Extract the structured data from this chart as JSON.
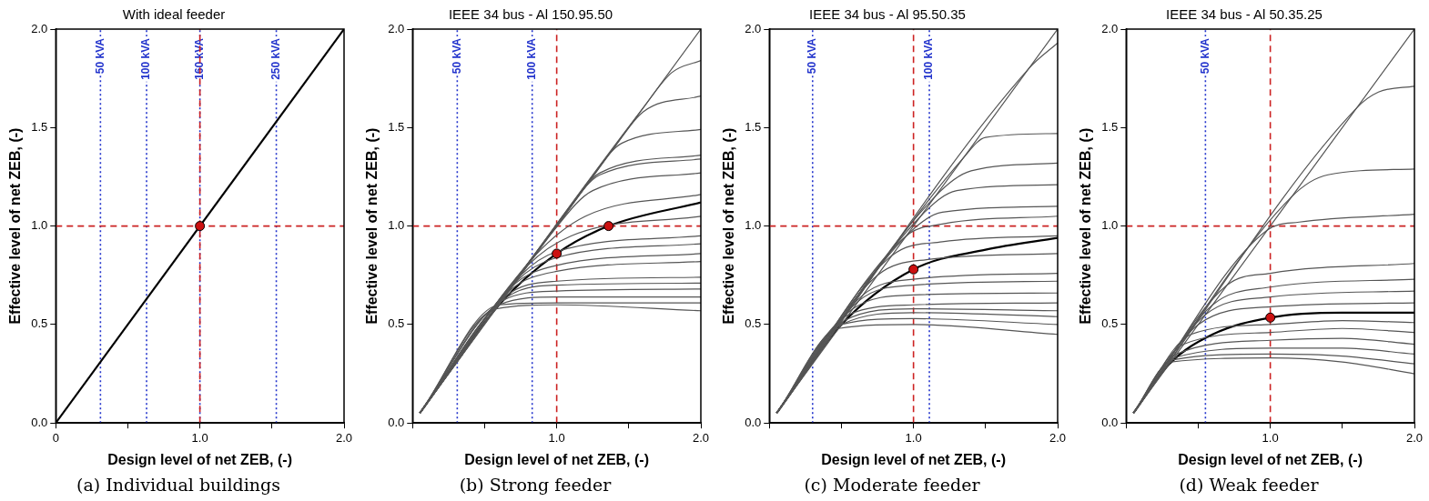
{
  "chart_data": [
    {
      "type": "line",
      "title": "With ideal feeder",
      "xlabel": "Design level of net ZEB, (-)",
      "ylabel": "Effective level of net ZEB, (-)",
      "annotations": [
        "(a) Individual buildings"
      ],
      "xlim": [
        0,
        2
      ],
      "ylim": [
        0,
        2
      ],
      "xticks": [
        {
          "value": 0,
          "label": "0"
        },
        {
          "value": 0.5,
          "label": null
        },
        {
          "value": 1,
          "label": "1.0"
        },
        {
          "value": 1.5,
          "label": null
        },
        {
          "value": 2,
          "label": "2.0"
        }
      ],
      "yticks": [
        {
          "value": 0,
          "label": "0.0"
        },
        {
          "value": 0.5,
          "label": "0.5"
        },
        {
          "value": 1,
          "label": "1.0"
        },
        {
          "value": 1.5,
          "label": "1.5"
        },
        {
          "value": 2,
          "label": "2.0"
        }
      ],
      "grid": false,
      "legend": false,
      "ref_lines": [
        {
          "axis": "x",
          "value": 0.31,
          "label": "50 kVA",
          "color": "#2233cc",
          "line_style": "dotted"
        },
        {
          "axis": "x",
          "value": 0.63,
          "label": "100 kVA",
          "color": "#2233cc",
          "line_style": "dotted"
        },
        {
          "axis": "x",
          "value": 1.0,
          "label": "160 kVA",
          "color": "#2233cc",
          "line_style": "dotted"
        },
        {
          "axis": "x",
          "value": 1.53,
          "label": "250 kVA",
          "color": "#2233cc",
          "line_style": "dotted"
        },
        {
          "axis": "x",
          "value": 1.0,
          "color": "#cc2222",
          "line_style": "dashed"
        },
        {
          "axis": "y",
          "value": 1.0,
          "color": "#cc2222",
          "line_style": "dashed"
        }
      ],
      "series": [
        {
          "type": "line",
          "color": "#000000",
          "x": [
            0,
            2
          ],
          "values": [
            0,
            2
          ]
        },
        {
          "type": "scatter",
          "marker": "circle",
          "color": "#cc1111",
          "x": [
            1.0
          ],
          "values": [
            1.0
          ]
        }
      ]
    },
    {
      "type": "line",
      "title": "IEEE 34 bus - Al 150.95.50",
      "xlabel": "Design level of net ZEB, (-)",
      "ylabel": "Effective level of net ZEB, (-)",
      "annotations": [
        "(b) Strong feeder"
      ],
      "xlim": [
        0,
        2
      ],
      "ylim": [
        0,
        2
      ],
      "xticks": [
        {
          "value": 0,
          "label": null
        },
        {
          "value": 0.5,
          "label": null
        },
        {
          "value": 1,
          "label": "1.0"
        },
        {
          "value": 1.5,
          "label": null
        },
        {
          "value": 2,
          "label": "2.0"
        }
      ],
      "yticks": [
        {
          "value": 0,
          "label": "0.0"
        },
        {
          "value": 0.5,
          "label": "0.5"
        },
        {
          "value": 1,
          "label": "1.0"
        },
        {
          "value": 1.5,
          "label": "1.5"
        },
        {
          "value": 2,
          "label": "2.0"
        }
      ],
      "grid": false,
      "legend": false,
      "ref_lines": [
        {
          "axis": "x",
          "value": 0.31,
          "label": "50 kVA",
          "color": "#2233cc",
          "line_style": "dotted"
        },
        {
          "axis": "x",
          "value": 0.83,
          "label": "100 kVA",
          "color": "#2233cc",
          "line_style": "dotted"
        },
        {
          "axis": "x",
          "value": 1.0,
          "color": "#cc2222",
          "line_style": "dashed"
        },
        {
          "axis": "y",
          "value": 1.0,
          "color": "#cc2222",
          "line_style": "dashed"
        }
      ],
      "series": [
        {
          "type": "line",
          "color": "#555555",
          "x": [
            0.05,
            2
          ],
          "values": [
            0.05,
            2
          ]
        },
        {
          "type": "line",
          "color": "#555555",
          "x": [
            0.05,
            1.6,
            1.8,
            2
          ],
          "values": [
            0.05,
            1.6,
            1.78,
            1.84
          ]
        },
        {
          "type": "line",
          "color": "#555555",
          "x": [
            0.05,
            1.4,
            1.6,
            2
          ],
          "values": [
            0.05,
            1.4,
            1.58,
            1.66
          ]
        },
        {
          "type": "line",
          "color": "#555555",
          "x": [
            0.05,
            1.2,
            1.45,
            2
          ],
          "values": [
            0.05,
            1.2,
            1.42,
            1.49
          ]
        },
        {
          "type": "line",
          "color": "#555555",
          "x": [
            0.05,
            1.05,
            1.3,
            2
          ],
          "values": [
            0.05,
            1.05,
            1.27,
            1.36
          ]
        },
        {
          "type": "line",
          "color": "#555555",
          "x": [
            0.05,
            1.0,
            1.3,
            2
          ],
          "values": [
            0.05,
            1.0,
            1.26,
            1.34
          ]
        },
        {
          "type": "line",
          "color": "#555555",
          "x": [
            0.05,
            0.95,
            1.25,
            2
          ],
          "values": [
            0.05,
            0.95,
            1.18,
            1.27
          ]
        },
        {
          "type": "line",
          "color": "#555555",
          "x": [
            0.05,
            0.85,
            1.2,
            2
          ],
          "values": [
            0.05,
            0.85,
            1.05,
            1.16
          ]
        },
        {
          "type": "line",
          "color": "#555555",
          "x": [
            0.05,
            0.8,
            1.1,
            2
          ],
          "values": [
            0.05,
            0.8,
            0.95,
            1.05
          ]
        },
        {
          "type": "line",
          "color": "#555555",
          "x": [
            0.05,
            0.75,
            1.0,
            2
          ],
          "values": [
            0.05,
            0.75,
            0.87,
            0.95
          ]
        },
        {
          "type": "line",
          "color": "#555555",
          "x": [
            0.05,
            0.72,
            1.0,
            2
          ],
          "values": [
            0.05,
            0.72,
            0.84,
            0.91
          ]
        },
        {
          "type": "line",
          "color": "#555555",
          "x": [
            0.05,
            0.7,
            1.0,
            2
          ],
          "values": [
            0.05,
            0.7,
            0.8,
            0.86
          ]
        },
        {
          "type": "line",
          "color": "#555555",
          "x": [
            0.05,
            0.67,
            1.0,
            2
          ],
          "values": [
            0.05,
            0.67,
            0.77,
            0.82
          ]
        },
        {
          "type": "line",
          "color": "#555555",
          "x": [
            0.05,
            0.64,
            1.0,
            2
          ],
          "values": [
            0.05,
            0.64,
            0.72,
            0.74
          ]
        },
        {
          "type": "line",
          "color": "#555555",
          "x": [
            0.05,
            0.62,
            1.0,
            2
          ],
          "values": [
            0.05,
            0.62,
            0.7,
            0.71
          ]
        },
        {
          "type": "line",
          "color": "#555555",
          "x": [
            0.05,
            0.62,
            1.0,
            2
          ],
          "values": [
            0.05,
            0.62,
            0.67,
            0.68
          ]
        },
        {
          "type": "line",
          "color": "#555555",
          "x": [
            0.05,
            0.6,
            1.0,
            2
          ],
          "values": [
            0.05,
            0.6,
            0.64,
            0.64
          ]
        },
        {
          "type": "line",
          "color": "#555555",
          "x": [
            0.05,
            0.6,
            1.0,
            2
          ],
          "values": [
            0.05,
            0.6,
            0.61,
            0.61
          ]
        },
        {
          "type": "line",
          "color": "#555555",
          "x": [
            0.05,
            0.58,
            1.0,
            2
          ],
          "values": [
            0.05,
            0.58,
            0.6,
            0.57
          ]
        },
        {
          "type": "line",
          "color": "#000000",
          "x": [
            0.05,
            0.6,
            1.0,
            1.36,
            2
          ],
          "values": [
            0.05,
            0.6,
            0.86,
            1.0,
            1.12
          ]
        },
        {
          "type": "scatter",
          "marker": "circle",
          "color": "#cc1111",
          "x": [
            1.0,
            1.36
          ],
          "values": [
            0.86,
            1.0
          ]
        }
      ]
    },
    {
      "type": "line",
      "title": "IEEE 34 bus - Al 95.50.35",
      "xlabel": "Design level of net ZEB, (-)",
      "ylabel": "Effective level of net ZEB, (-)",
      "annotations": [
        "(c) Moderate feeder"
      ],
      "xlim": [
        0,
        2
      ],
      "ylim": [
        0,
        2
      ],
      "xticks": [
        {
          "value": 0,
          "label": null
        },
        {
          "value": 0.5,
          "label": null
        },
        {
          "value": 1,
          "label": "1.0"
        },
        {
          "value": 1.5,
          "label": null
        },
        {
          "value": 2,
          "label": "2.0"
        }
      ],
      "yticks": [
        {
          "value": 0,
          "label": "0.0"
        },
        {
          "value": 0.5,
          "label": "0.5"
        },
        {
          "value": 1,
          "label": "1.0"
        },
        {
          "value": 1.5,
          "label": "1.5"
        },
        {
          "value": 2,
          "label": "2.0"
        }
      ],
      "grid": false,
      "legend": false,
      "ref_lines": [
        {
          "axis": "x",
          "value": 0.3,
          "label": "50 kVA",
          "color": "#2233cc",
          "line_style": "dotted"
        },
        {
          "axis": "x",
          "value": 1.11,
          "label": "100 kVA",
          "color": "#2233cc",
          "line_style": "dotted"
        },
        {
          "axis": "x",
          "value": 1.0,
          "color": "#cc2222",
          "line_style": "dashed"
        },
        {
          "axis": "y",
          "value": 1.0,
          "color": "#cc2222",
          "line_style": "dashed"
        }
      ],
      "series": [
        {
          "type": "line",
          "color": "#555555",
          "x": [
            0.05,
            2
          ],
          "values": [
            0.05,
            2
          ]
        },
        {
          "type": "line",
          "color": "#555555",
          "x": [
            0.05,
            1.8,
            2
          ],
          "values": [
            0.05,
            1.8,
            1.93
          ]
        },
        {
          "type": "line",
          "color": "#555555",
          "x": [
            0.05,
            1.35,
            1.5,
            2
          ],
          "values": [
            0.05,
            1.35,
            1.45,
            1.47
          ]
        },
        {
          "type": "line",
          "color": "#555555",
          "x": [
            0.05,
            1.15,
            1.4,
            2
          ],
          "values": [
            0.05,
            1.15,
            1.28,
            1.32
          ]
        },
        {
          "type": "line",
          "color": "#555555",
          "x": [
            0.05,
            1.05,
            1.3,
            2
          ],
          "values": [
            0.05,
            1.05,
            1.18,
            1.21
          ]
        },
        {
          "type": "line",
          "color": "#555555",
          "x": [
            0.05,
            0.95,
            1.2,
            2
          ],
          "values": [
            0.05,
            0.95,
            1.07,
            1.1
          ]
        },
        {
          "type": "line",
          "color": "#555555",
          "x": [
            0.05,
            0.95,
            1.2,
            2
          ],
          "values": [
            0.05,
            0.95,
            1.01,
            1.05
          ]
        },
        {
          "type": "line",
          "color": "#555555",
          "x": [
            0.05,
            0.85,
            1.2,
            2
          ],
          "values": [
            0.05,
            0.85,
            0.92,
            0.95
          ]
        },
        {
          "type": "line",
          "color": "#555555",
          "x": [
            0.05,
            0.75,
            1.1,
            2
          ],
          "values": [
            0.05,
            0.75,
            0.83,
            0.86
          ]
        },
        {
          "type": "line",
          "color": "#555555",
          "x": [
            0.05,
            0.65,
            1.0,
            2
          ],
          "values": [
            0.05,
            0.65,
            0.73,
            0.76
          ]
        },
        {
          "type": "line",
          "color": "#555555",
          "x": [
            0.05,
            0.62,
            1.0,
            2
          ],
          "values": [
            0.05,
            0.62,
            0.7,
            0.72
          ]
        },
        {
          "type": "line",
          "color": "#555555",
          "x": [
            0.05,
            0.58,
            1.0,
            2
          ],
          "values": [
            0.05,
            0.58,
            0.65,
            0.66
          ]
        },
        {
          "type": "line",
          "color": "#555555",
          "x": [
            0.05,
            0.55,
            1.0,
            2
          ],
          "values": [
            0.05,
            0.55,
            0.6,
            0.61
          ]
        },
        {
          "type": "line",
          "color": "#555555",
          "x": [
            0.05,
            0.52,
            1.0,
            2
          ],
          "values": [
            0.05,
            0.52,
            0.58,
            0.57
          ]
        },
        {
          "type": "line",
          "color": "#555555",
          "x": [
            0.05,
            0.5,
            1.0,
            2
          ],
          "values": [
            0.05,
            0.5,
            0.56,
            0.54
          ]
        },
        {
          "type": "line",
          "color": "#555555",
          "x": [
            0.05,
            0.5,
            1.0,
            2
          ],
          "values": [
            0.05,
            0.5,
            0.53,
            0.5
          ]
        },
        {
          "type": "line",
          "color": "#555555",
          "x": [
            0.05,
            0.48,
            1.0,
            2
          ],
          "values": [
            0.05,
            0.48,
            0.5,
            0.45
          ]
        },
        {
          "type": "line",
          "color": "#000000",
          "x": [
            0.05,
            0.5,
            1.0,
            1.5,
            2
          ],
          "values": [
            0.05,
            0.5,
            0.78,
            0.88,
            0.94
          ]
        },
        {
          "type": "scatter",
          "marker": "circle",
          "color": "#cc1111",
          "x": [
            1.0
          ],
          "values": [
            0.78
          ]
        }
      ]
    },
    {
      "type": "line",
      "title": "IEEE 34 bus - Al 50.35.25",
      "xlabel": "Design level of net ZEB, (-)",
      "ylabel": "Effective level of net ZEB, (-)",
      "annotations": [
        "(d) Weak feeder"
      ],
      "xlim": [
        0,
        2
      ],
      "ylim": [
        0,
        2
      ],
      "xticks": [
        {
          "value": 0,
          "label": null
        },
        {
          "value": 0.5,
          "label": null
        },
        {
          "value": 1,
          "label": "1.0"
        },
        {
          "value": 1.5,
          "label": null
        },
        {
          "value": 2,
          "label": "2.0"
        }
      ],
      "yticks": [
        {
          "value": 0,
          "label": "0.0"
        },
        {
          "value": 0.5,
          "label": "0.5"
        },
        {
          "value": 1,
          "label": "1.0"
        },
        {
          "value": 1.5,
          "label": "1.5"
        },
        {
          "value": 2,
          "label": "2.0"
        }
      ],
      "grid": false,
      "legend": false,
      "ref_lines": [
        {
          "axis": "x",
          "value": 0.55,
          "label": "50 kVA",
          "color": "#2233cc",
          "line_style": "dotted"
        },
        {
          "axis": "x",
          "value": 1.0,
          "color": "#cc2222",
          "line_style": "dashed"
        },
        {
          "axis": "y",
          "value": 1.0,
          "color": "#cc2222",
          "line_style": "dashed"
        }
      ],
      "series": [
        {
          "type": "line",
          "color": "#555555",
          "x": [
            0.05,
            2
          ],
          "values": [
            0.05,
            2
          ]
        },
        {
          "type": "line",
          "color": "#555555",
          "x": [
            0.05,
            1.6,
            1.75,
            2
          ],
          "values": [
            0.05,
            1.6,
            1.68,
            1.71
          ]
        },
        {
          "type": "line",
          "color": "#555555",
          "x": [
            0.05,
            1.15,
            1.4,
            2
          ],
          "values": [
            0.05,
            1.15,
            1.26,
            1.29
          ]
        },
        {
          "type": "line",
          "color": "#555555",
          "x": [
            0.05,
            0.98,
            1.2,
            2
          ],
          "values": [
            0.05,
            0.98,
            1.02,
            1.06
          ]
        },
        {
          "type": "line",
          "color": "#555555",
          "x": [
            0.05,
            0.7,
            1.0,
            2
          ],
          "values": [
            0.05,
            0.7,
            0.76,
            0.81
          ]
        },
        {
          "type": "line",
          "color": "#555555",
          "x": [
            0.05,
            0.6,
            1.0,
            2
          ],
          "values": [
            0.05,
            0.6,
            0.69,
            0.73
          ]
        },
        {
          "type": "line",
          "color": "#555555",
          "x": [
            0.05,
            0.55,
            1.0,
            2
          ],
          "values": [
            0.05,
            0.55,
            0.64,
            0.67
          ]
        },
        {
          "type": "line",
          "color": "#555555",
          "x": [
            0.05,
            0.5,
            1.0,
            2
          ],
          "values": [
            0.05,
            0.5,
            0.59,
            0.61
          ]
        },
        {
          "type": "line",
          "color": "#555555",
          "x": [
            0.05,
            0.45,
            1.0,
            1.5,
            2
          ],
          "values": [
            0.05,
            0.45,
            0.5,
            0.52,
            0.51
          ]
        },
        {
          "type": "line",
          "color": "#555555",
          "x": [
            0.05,
            0.4,
            1.0,
            1.5,
            2
          ],
          "values": [
            0.05,
            0.4,
            0.46,
            0.48,
            0.46
          ]
        },
        {
          "type": "line",
          "color": "#555555",
          "x": [
            0.05,
            0.35,
            1.0,
            1.5,
            2
          ],
          "values": [
            0.05,
            0.35,
            0.42,
            0.43,
            0.4
          ]
        },
        {
          "type": "line",
          "color": "#555555",
          "x": [
            0.05,
            0.33,
            1.0,
            1.5,
            2
          ],
          "values": [
            0.05,
            0.33,
            0.38,
            0.38,
            0.35
          ]
        },
        {
          "type": "line",
          "color": "#555555",
          "x": [
            0.05,
            0.32,
            1.0,
            1.5,
            2
          ],
          "values": [
            0.05,
            0.32,
            0.35,
            0.34,
            0.3
          ]
        },
        {
          "type": "line",
          "color": "#555555",
          "x": [
            0.05,
            0.31,
            1.0,
            1.5,
            2
          ],
          "values": [
            0.05,
            0.31,
            0.33,
            0.31,
            0.25
          ]
        },
        {
          "type": "line",
          "color": "#000000",
          "x": [
            0.05,
            0.3,
            0.6,
            1.0,
            1.5,
            2
          ],
          "values": [
            0.05,
            0.3,
            0.45,
            0.535,
            0.56,
            0.56
          ]
        },
        {
          "type": "scatter",
          "marker": "circle",
          "color": "#cc1111",
          "x": [
            1.0
          ],
          "values": [
            0.535
          ]
        }
      ]
    }
  ]
}
